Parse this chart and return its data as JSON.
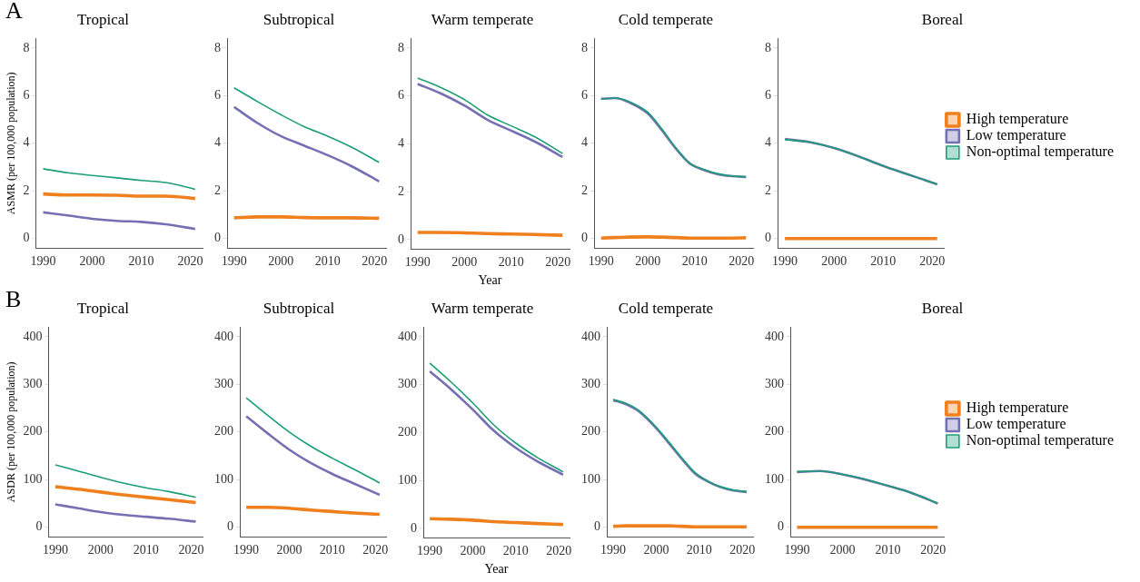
{
  "chart_data": [
    {
      "type": "line",
      "title": "Tropical",
      "ylabel": "ASMR (per 100,000 population)",
      "annotations": [
        "A"
      ],
      "xlim": [
        1988.5,
        2022.5
      ],
      "xticks": [
        1990,
        2000,
        2010,
        2020
      ],
      "ylim": [
        -0.4,
        8.4
      ],
      "yticks": [
        0,
        2,
        4,
        6,
        8
      ],
      "grid": false,
      "legend": false,
      "marker": "none",
      "line_style": "solid",
      "x": [
        1990,
        1995,
        2000,
        2005,
        2010,
        2015,
        2021
      ],
      "series": [
        {
          "color": "#f07f1e",
          "values": [
            1.87,
            1.83,
            1.83,
            1.82,
            1.78,
            1.78,
            1.68
          ]
        },
        {
          "color": "#7570b3",
          "values": [
            1.1,
            0.97,
            0.83,
            0.74,
            0.7,
            0.6,
            0.4
          ]
        },
        {
          "color": "#1b9e77",
          "values": [
            2.93,
            2.76,
            2.65,
            2.55,
            2.44,
            2.35,
            2.07
          ]
        }
      ]
    },
    {
      "type": "line",
      "title": "Subtropical",
      "xlim": [
        1988.5,
        2022.5
      ],
      "xticks": [
        1990,
        2000,
        2010,
        2020
      ],
      "ylim": [
        -0.4,
        8.4
      ],
      "yticks": [
        0,
        2,
        4,
        6,
        8
      ],
      "grid": false,
      "legend": false,
      "marker": "none",
      "line_style": "solid",
      "x": [
        1990,
        1995,
        2000,
        2005,
        2010,
        2015,
        2021
      ],
      "series": [
        {
          "color": "#f07f1e",
          "values": [
            0.87,
            0.91,
            0.91,
            0.88,
            0.87,
            0.87,
            0.85
          ]
        },
        {
          "color": "#7570b3",
          "values": [
            5.52,
            4.85,
            4.3,
            3.9,
            3.5,
            3.05,
            2.4
          ]
        },
        {
          "color": "#1b9e77",
          "values": [
            6.33,
            5.75,
            5.2,
            4.7,
            4.3,
            3.85,
            3.2
          ]
        }
      ]
    },
    {
      "type": "line",
      "title": "Warm temperate",
      "xlabel": "Year",
      "xlim": [
        1988.5,
        2022.5
      ],
      "xticks": [
        1990,
        2000,
        2010,
        2020
      ],
      "ylim": [
        -0.4,
        8.4
      ],
      "yticks": [
        0,
        2,
        4,
        6,
        8
      ],
      "grid": false,
      "legend": false,
      "marker": "none",
      "line_style": "solid",
      "x": [
        1990,
        1995,
        2000,
        2005,
        2010,
        2015,
        2021
      ],
      "series": [
        {
          "color": "#f07f1e",
          "values": [
            0.3,
            0.3,
            0.28,
            0.25,
            0.23,
            0.21,
            0.18
          ]
        },
        {
          "color": "#7570b3",
          "values": [
            6.5,
            6.1,
            5.6,
            5.0,
            4.55,
            4.1,
            3.45
          ]
        },
        {
          "color": "#1b9e77",
          "values": [
            6.75,
            6.35,
            5.85,
            5.2,
            4.75,
            4.3,
            3.6
          ]
        }
      ]
    },
    {
      "type": "line",
      "title": "Cold temperate",
      "xlim": [
        1988.5,
        2022.5
      ],
      "xticks": [
        1990,
        2000,
        2010,
        2020
      ],
      "ylim": [
        -0.4,
        8.4
      ],
      "yticks": [
        0,
        2,
        4,
        6,
        8
      ],
      "grid": false,
      "legend": false,
      "marker": "none",
      "line_style": "solid",
      "x": [
        1990,
        1993,
        1996,
        2000,
        2003,
        2006,
        2009,
        2012,
        2015,
        2018,
        2021
      ],
      "series": [
        {
          "color": "#f07f1e",
          "values": [
            0.02,
            0.04,
            0.06,
            0.07,
            0.06,
            0.04,
            0.02,
            0.02,
            0.02,
            0.02,
            0.03
          ]
        },
        {
          "color": "#7570b3",
          "values": [
            5.87,
            5.9,
            5.72,
            5.25,
            4.55,
            3.78,
            3.15,
            2.88,
            2.7,
            2.62,
            2.58
          ]
        },
        {
          "color": "#1b9e77",
          "values": [
            5.85,
            5.9,
            5.75,
            5.3,
            4.6,
            3.8,
            3.15,
            2.9,
            2.72,
            2.62,
            2.6
          ]
        }
      ]
    },
    {
      "type": "line",
      "title": "Boreal",
      "xlim": [
        1988.5,
        2022.5
      ],
      "xticks": [
        1990,
        2000,
        2010,
        2020
      ],
      "ylim": [
        -0.4,
        8.4
      ],
      "yticks": [
        0,
        2,
        4,
        6,
        8
      ],
      "grid": false,
      "legend": "right",
      "marker": "none",
      "line_style": "solid",
      "x": [
        1990,
        1995,
        2000,
        2005,
        2010,
        2015,
        2021
      ],
      "series": [
        {
          "name": "High temperature",
          "color": "#f07f1e",
          "values": [
            0,
            0,
            0,
            0,
            0,
            0,
            0
          ]
        },
        {
          "name": "Low temperature",
          "color": "#7570b3",
          "values": [
            4.18,
            4.05,
            3.8,
            3.45,
            3.05,
            2.7,
            2.28
          ]
        },
        {
          "name": "Non-optimal temperature",
          "color": "#1b9e77",
          "values": [
            4.15,
            4.05,
            3.8,
            3.45,
            3.05,
            2.7,
            2.28
          ]
        }
      ]
    },
    {
      "type": "line",
      "title": "Tropical",
      "ylabel": "ASDR (per 100,000 population)",
      "annotations": [
        "B"
      ],
      "xlim": [
        1988.5,
        2022.5
      ],
      "xticks": [
        1990,
        2000,
        2010,
        2020
      ],
      "ylim": [
        -20,
        420
      ],
      "yticks": [
        0,
        100,
        200,
        300,
        400
      ],
      "grid": false,
      "legend": false,
      "marker": "none",
      "line_style": "solid",
      "x": [
        1990,
        1995,
        2000,
        2005,
        2010,
        2015,
        2021
      ],
      "series": [
        {
          "color": "#f07f1e",
          "values": [
            85,
            80,
            74,
            68,
            63,
            58,
            52
          ]
        },
        {
          "color": "#7570b3",
          "values": [
            48,
            40,
            32,
            26,
            22,
            18,
            12
          ]
        },
        {
          "color": "#1b9e77",
          "values": [
            131,
            118,
            105,
            93,
            83,
            75,
            63
          ]
        }
      ]
    },
    {
      "type": "line",
      "title": "Subtropical",
      "xlim": [
        1988.5,
        2022.5
      ],
      "xticks": [
        1990,
        2000,
        2010,
        2020
      ],
      "ylim": [
        -20,
        420
      ],
      "yticks": [
        0,
        100,
        200,
        300,
        400
      ],
      "grid": false,
      "legend": false,
      "marker": "none",
      "line_style": "solid",
      "x": [
        1990,
        1995,
        2000,
        2005,
        2010,
        2015,
        2021
      ],
      "series": [
        {
          "color": "#f07f1e",
          "values": [
            42,
            42,
            40,
            36,
            33,
            30,
            27
          ]
        },
        {
          "color": "#7570b3",
          "values": [
            233,
            197,
            163,
            135,
            112,
            92,
            68
          ]
        },
        {
          "color": "#1b9e77",
          "values": [
            272,
            235,
            200,
            170,
            145,
            122,
            93
          ]
        }
      ]
    },
    {
      "type": "line",
      "title": "Warm temperate",
      "xlabel": "Year",
      "xlim": [
        1988.5,
        2022.5
      ],
      "xticks": [
        1990,
        2000,
        2010,
        2020
      ],
      "ylim": [
        -20,
        420
      ],
      "yticks": [
        0,
        100,
        200,
        300,
        400
      ],
      "grid": false,
      "legend": false,
      "marker": "none",
      "line_style": "solid",
      "x": [
        1990,
        1995,
        2000,
        2005,
        2010,
        2015,
        2021
      ],
      "series": [
        {
          "color": "#f07f1e",
          "values": [
            20,
            19,
            17,
            14,
            12,
            10,
            8
          ]
        },
        {
          "color": "#7570b3",
          "values": [
            328,
            290,
            248,
            203,
            168,
            140,
            112
          ]
        },
        {
          "color": "#1b9e77",
          "values": [
            345,
            305,
            262,
            215,
            178,
            148,
            118
          ]
        }
      ]
    },
    {
      "type": "line",
      "title": "Cold temperate",
      "xlim": [
        1988.5,
        2022.5
      ],
      "xticks": [
        1990,
        2000,
        2010,
        2020
      ],
      "ylim": [
        -20,
        420
      ],
      "yticks": [
        0,
        100,
        200,
        300,
        400
      ],
      "grid": false,
      "legend": false,
      "marker": "none",
      "line_style": "solid",
      "x": [
        1990,
        1993,
        1996,
        2000,
        2003,
        2006,
        2009,
        2012,
        2015,
        2018,
        2021
      ],
      "series": [
        {
          "color": "#f07f1e",
          "values": [
            2,
            3,
            3,
            3,
            3,
            2,
            1,
            1,
            1,
            1,
            1
          ]
        },
        {
          "color": "#7570b3",
          "values": [
            267,
            258,
            243,
            208,
            176,
            143,
            113,
            96,
            84,
            77,
            74
          ]
        },
        {
          "color": "#1b9e77",
          "values": [
            268,
            260,
            245,
            210,
            178,
            145,
            115,
            97,
            85,
            78,
            75
          ]
        }
      ]
    },
    {
      "type": "line",
      "title": "Boreal",
      "xlim": [
        1988.5,
        2022.5
      ],
      "xticks": [
        1990,
        2000,
        2010,
        2020
      ],
      "ylim": [
        -20,
        420
      ],
      "yticks": [
        0,
        100,
        200,
        300,
        400
      ],
      "grid": false,
      "legend": "right",
      "marker": "none",
      "line_style": "solid",
      "x": [
        1990,
        1995,
        2000,
        2005,
        2010,
        2015,
        2021
      ],
      "series": [
        {
          "name": "High temperature",
          "color": "#f07f1e",
          "values": [
            0,
            0,
            0,
            0,
            0,
            0,
            0
          ]
        },
        {
          "name": "Low temperature",
          "color": "#7570b3",
          "values": [
            116,
            118,
            111,
            100,
            87,
            73,
            50
          ]
        },
        {
          "name": "Non-optimal temperature",
          "color": "#1b9e77",
          "values": [
            117,
            118,
            111,
            101,
            87,
            73,
            50
          ]
        }
      ]
    }
  ]
}
